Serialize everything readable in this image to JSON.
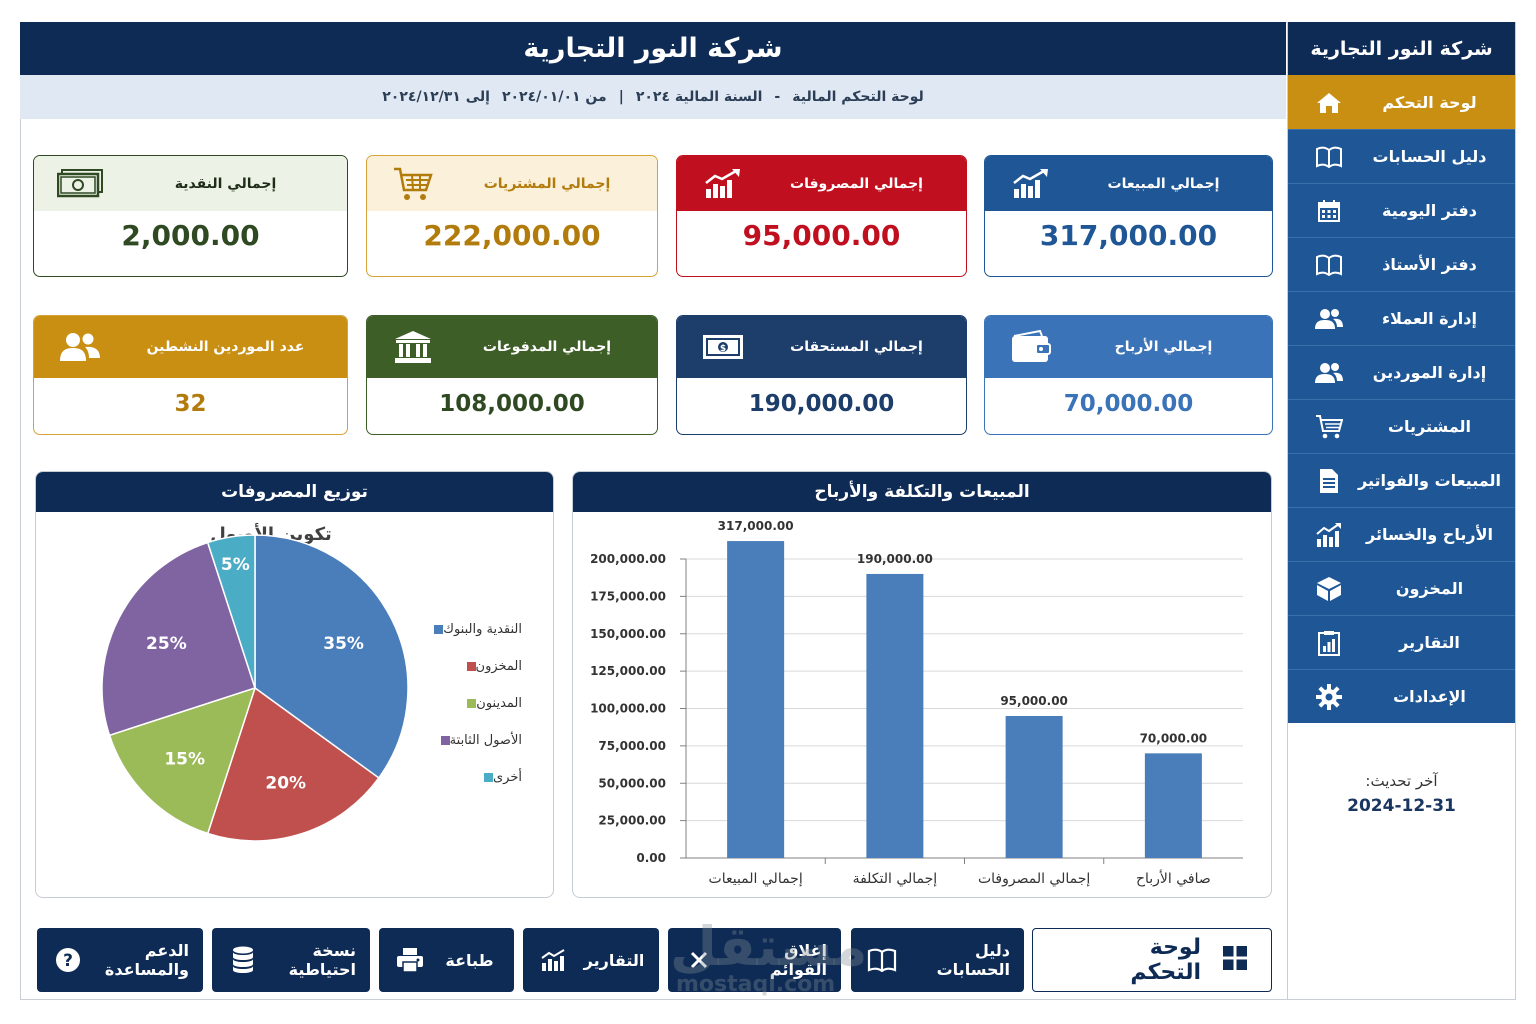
{
  "header": {
    "title": "شركة النور التجارية",
    "subtitle_dashboard": "لوحة التحكم المالية",
    "subtitle_dash": "-",
    "subtitle_year": "السنة المالية ٢٠٢٤",
    "subtitle_sep": "|",
    "subtitle_from": "من ٢٠٢٤/٠١/٠١",
    "subtitle_to": "إلى ٢٠٢٤/١٢/٣١"
  },
  "sidebar": {
    "title": "شركة النور التجارية",
    "items": [
      {
        "label": "لوحة التحكم",
        "icon": "home-icon",
        "active": true
      },
      {
        "label": "دليل الحسابات",
        "icon": "book-icon"
      },
      {
        "label": "دفتر اليومية",
        "icon": "calendar-icon"
      },
      {
        "label": "دفتر الأستاذ",
        "icon": "book-icon"
      },
      {
        "label": "إدارة العملاء",
        "icon": "users-icon"
      },
      {
        "label": "إدارة الموردين",
        "icon": "users-icon"
      },
      {
        "label": "المشتريات",
        "icon": "cart-icon"
      },
      {
        "label": "المبيعات والفواتير",
        "icon": "invoice-icon"
      },
      {
        "label": "الأرباح والخسائر",
        "icon": "chart-up-icon"
      },
      {
        "label": "المخزون",
        "icon": "box-icon"
      },
      {
        "label": "التقارير",
        "icon": "report-icon"
      },
      {
        "label": "الإعدادات",
        "icon": "gear-icon"
      }
    ],
    "last_update_label": "آخر تحديث:",
    "last_update_value": "2024-12-31"
  },
  "kpis": {
    "sales": {
      "title": "إجمالي المبيعات",
      "value": "317,000.00",
      "icon": "trend-up-icon",
      "color": "#1f5796"
    },
    "expenses": {
      "title": "إجمالي المصروفات",
      "value": "95,000.00",
      "icon": "trend-up-icon",
      "color": "#c00f1e"
    },
    "purchases": {
      "title": "إجمالي المشتريات",
      "value": "222,000.00",
      "icon": "cart-icon",
      "color": "#c98f12"
    },
    "cash": {
      "title": "إجمالي النقدية",
      "value": "2,000.00",
      "icon": "cash-icon",
      "color": "#375a23"
    },
    "profits": {
      "title": "إجمالي الأرباح",
      "value": "70,000.00",
      "icon": "wallet-icon",
      "color": "#3a73b8"
    },
    "receivables": {
      "title": "إجمالي المستحقات",
      "value": "190,000.00",
      "icon": "money-icon",
      "color": "#1d3d6b"
    },
    "payments": {
      "title": "إجمالي المدفوعات",
      "value": "108,000.00",
      "icon": "bank-icon",
      "color": "#3e5e27"
    },
    "suppliers": {
      "title": "عدد الموردين النشطين",
      "value": "32",
      "icon": "users-icon",
      "color": "#c98f12"
    }
  },
  "pie_panel": {
    "title": "توزيع المصروفات"
  },
  "bar_panel": {
    "title": "المبيعات والتكلفة والأرباح"
  },
  "chart_data": [
    {
      "type": "pie",
      "title": "تكوين الأصول",
      "labels": [
        "النقدية والبنوك",
        "المخزون",
        "المدينون",
        "الأصول الثابتة",
        "أخرى"
      ],
      "values": [
        35,
        20,
        15,
        25,
        5
      ],
      "value_labels": [
        "35%",
        "20%",
        "15%",
        "25%",
        "5%"
      ],
      "colors": [
        "#4a7ebb",
        "#c0504d",
        "#9bbb59",
        "#8064a2",
        "#4bacc6"
      ],
      "legend": "right"
    },
    {
      "type": "bar",
      "categories": [
        "إجمالي المبيعات",
        "إجمالي التكلفة",
        "إجمالي المصروفات",
        "صافي الأرباح"
      ],
      "values": [
        317000,
        190000,
        95000,
        70000
      ],
      "value_labels": [
        "317,000.00",
        "190,000.00",
        "95,000.00",
        "70,000.00"
      ],
      "ylim": [
        0,
        200000
      ],
      "yticks": [
        "0.00",
        "25,000.00",
        "50,000.00",
        "75,000.00",
        "100,000.00",
        "125,000.00",
        "150,000.00",
        "175,000.00",
        "200,000.00"
      ],
      "color": "#4a7ebb",
      "grid": true
    }
  ],
  "buttons": {
    "dashboard": "لوحة التحكم",
    "accounts": "دليل الحسابات",
    "close_lists": "إغلاق القوائم",
    "reports": "التقارير",
    "print": "طباعة",
    "backup": "نسخة احتياطية",
    "support": "الدعم والمساعدة"
  },
  "watermark": {
    "ar": "مستقل",
    "en": "mostaql.com"
  }
}
